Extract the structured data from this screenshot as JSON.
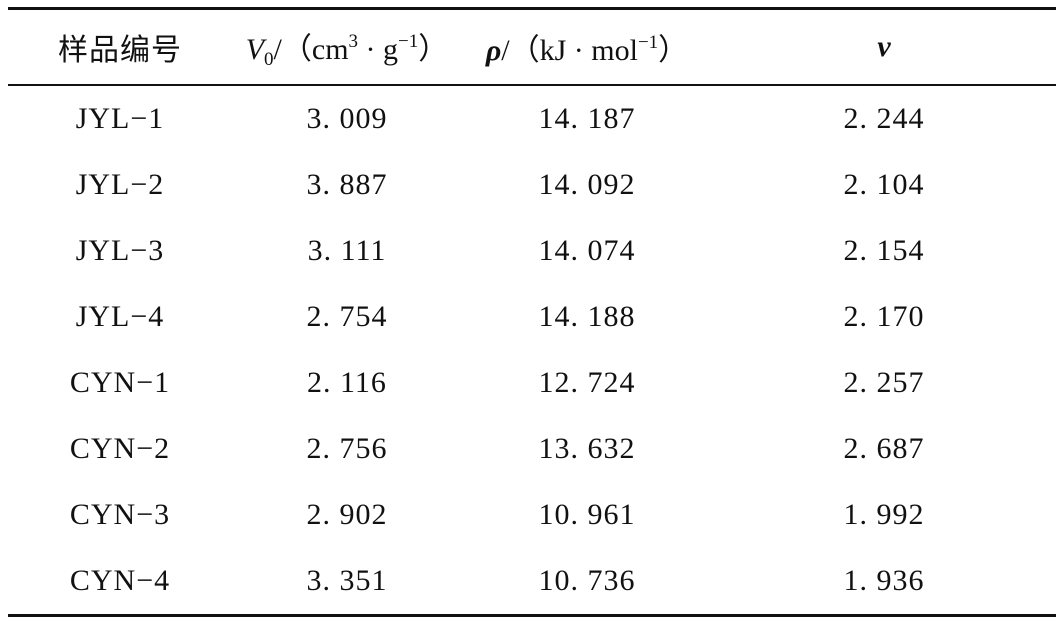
{
  "table": {
    "headers": {
      "sample_id": "样品编号",
      "v0_symbol": "V",
      "v0_sub": "0",
      "v0_unit_prefix": "/（cm",
      "v0_exp1": "3",
      "v0_mid": " · g",
      "v0_exp2": "−1",
      "v0_close": "）",
      "rho_symbol": "ρ",
      "rho_unit_prefix": "/（kJ · mol",
      "rho_exp": "−1",
      "rho_close": "）",
      "nu_symbol": "ν"
    },
    "rows": [
      {
        "sample": "JYL−1",
        "v0": "3. 009",
        "rho": "14. 187",
        "nu": "2. 244"
      },
      {
        "sample": "JYL−2",
        "v0": "3. 887",
        "rho": "14. 092",
        "nu": "2. 104"
      },
      {
        "sample": "JYL−3",
        "v0": "3. 111",
        "rho": "14. 074",
        "nu": "2. 154"
      },
      {
        "sample": "JYL−4",
        "v0": "2. 754",
        "rho": "14. 188",
        "nu": "2. 170"
      },
      {
        "sample": "CYN−1",
        "v0": "2. 116",
        "rho": "12. 724",
        "nu": "2. 257"
      },
      {
        "sample": "CYN−2",
        "v0": "2. 756",
        "rho": "13. 632",
        "nu": "2. 687"
      },
      {
        "sample": "CYN−3",
        "v0": "2. 902",
        "rho": "10. 961",
        "nu": "1. 992"
      },
      {
        "sample": "CYN−4",
        "v0": "3. 351",
        "rho": "10. 736",
        "nu": "1. 936"
      }
    ]
  }
}
